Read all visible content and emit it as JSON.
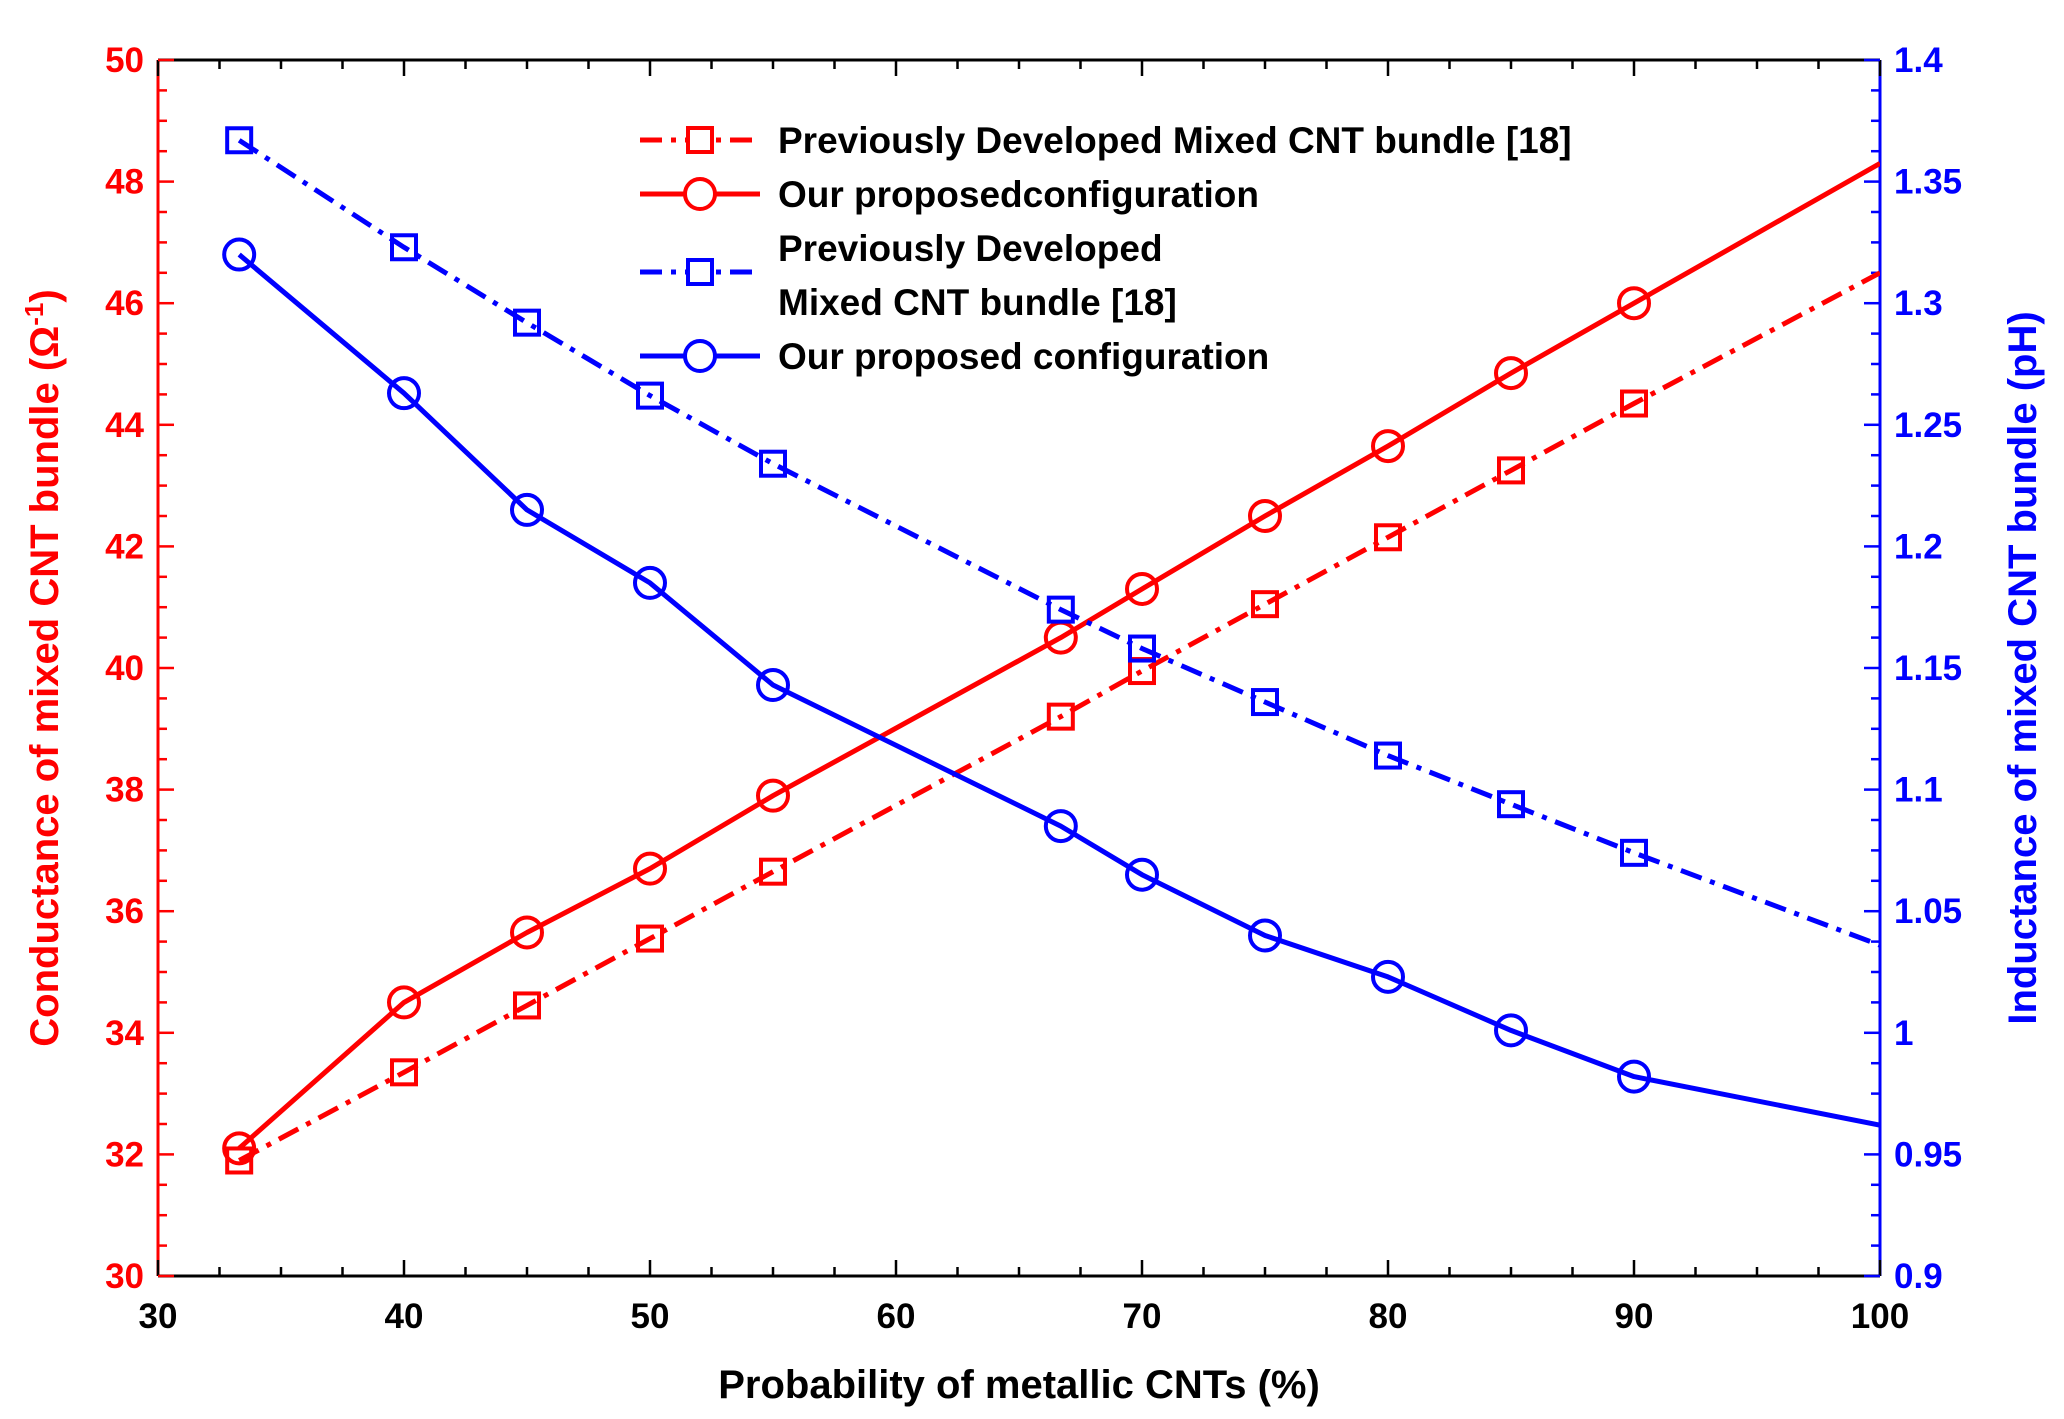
{
  "chart_data": {
    "type": "line",
    "x_label": "Probability of metallic CNTs (%)",
    "y_left_label": "Conductance of mixed CNT bundle (Ω",
    "y_left_label_sup": "-1",
    "y_left_label_close": ")",
    "y_right_label": "Inductance of mixed CNT bundle (pH)",
    "x_range": [
      30,
      100
    ],
    "y_left_range": [
      30,
      50
    ],
    "y_right_range": [
      0.9,
      1.4
    ],
    "x_ticks": [
      "30",
      "40",
      "50",
      "60",
      "70",
      "80",
      "90",
      "100"
    ],
    "y_left_ticks": [
      "30",
      "32",
      "34",
      "36",
      "38",
      "40",
      "42",
      "44",
      "46",
      "48",
      "50"
    ],
    "y_right_ticks": [
      "0.9",
      "0.95",
      "1",
      "1.05",
      "1.1",
      "1.15",
      "1.2",
      "1.25",
      "1.3",
      "1.35",
      "1.4"
    ],
    "colors": {
      "left_axis": "#ff0000",
      "right_axis": "#0000ff",
      "text": "#000000"
    },
    "series": [
      {
        "name": "Previously Developed Mixed CNT bundle [18]",
        "axis": "left",
        "color": "#ff0000",
        "line": "dashdot",
        "marker": "square",
        "x": [
          33.3,
          40,
          45,
          50,
          55,
          66.7,
          70,
          75,
          80,
          85,
          90,
          100
        ],
        "y": [
          31.9,
          33.35,
          34.45,
          35.55,
          36.65,
          39.2,
          39.95,
          41.05,
          42.15,
          43.25,
          44.35,
          46.5
        ],
        "marker_mask": [
          1,
          1,
          1,
          1,
          1,
          1,
          1,
          1,
          1,
          1,
          1,
          0
        ]
      },
      {
        "name": "Our proposedconfiguration",
        "axis": "left",
        "color": "#ff0000",
        "line": "solid",
        "marker": "circle",
        "x": [
          33.3,
          40,
          45,
          50,
          55,
          66.7,
          70,
          75,
          80,
          85,
          90,
          100
        ],
        "y": [
          32.1,
          34.5,
          35.65,
          36.7,
          37.9,
          40.5,
          41.3,
          42.5,
          43.65,
          44.85,
          46.0,
          48.3
        ],
        "marker_mask": [
          1,
          1,
          1,
          1,
          1,
          1,
          1,
          1,
          1,
          1,
          1,
          0
        ]
      },
      {
        "name": "Previously Developed",
        "name_line2": "Mixed CNT bundle [18]",
        "axis": "right",
        "color": "#0000ff",
        "line": "dashdot",
        "marker": "square",
        "x": [
          33.3,
          40,
          45,
          50,
          55,
          66.7,
          70,
          75,
          80,
          85,
          90,
          100
        ],
        "y": [
          1.367,
          1.323,
          1.292,
          1.262,
          1.234,
          1.174,
          1.158,
          1.136,
          1.114,
          1.094,
          1.074,
          1.036
        ],
        "marker_mask": [
          1,
          1,
          1,
          1,
          1,
          1,
          1,
          1,
          1,
          1,
          1,
          0
        ]
      },
      {
        "name": "Our proposed configuration",
        "axis": "right",
        "color": "#0000ff",
        "line": "solid",
        "marker": "circle",
        "x": [
          33.3,
          40,
          45,
          50,
          55,
          66.7,
          70,
          75,
          80,
          85,
          90,
          100
        ],
        "y": [
          1.32,
          1.263,
          1.215,
          1.185,
          1.143,
          1.085,
          1.065,
          1.04,
          1.023,
          1.001,
          0.982,
          0.962
        ],
        "marker_mask": [
          1,
          1,
          1,
          1,
          1,
          1,
          1,
          1,
          1,
          1,
          1,
          0
        ]
      }
    ]
  }
}
